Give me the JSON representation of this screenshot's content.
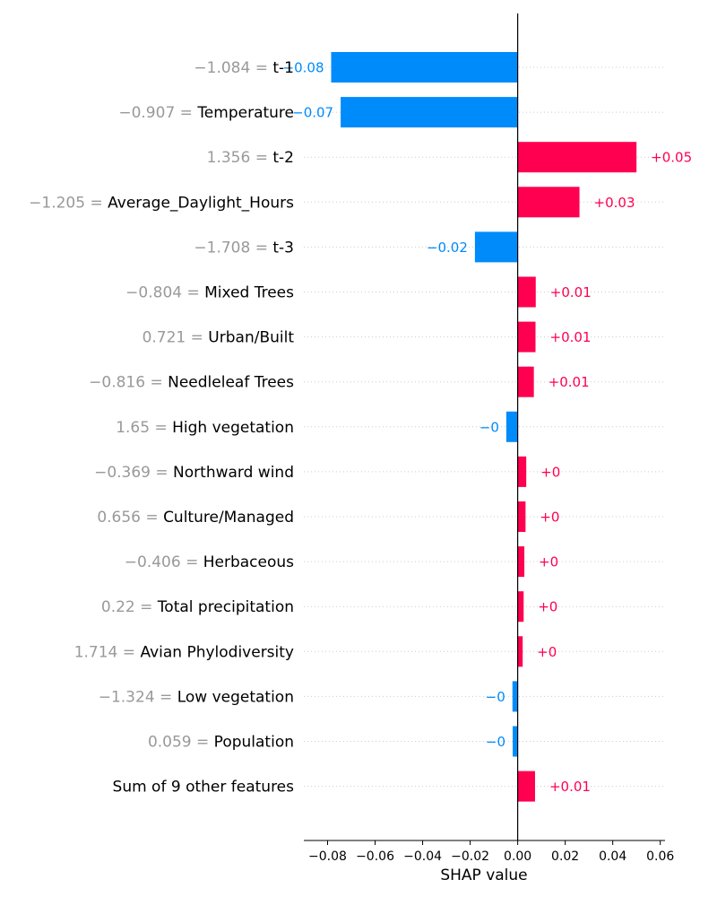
{
  "chart_data": {
    "type": "bar",
    "xlabel": "SHAP value",
    "xlim": [
      -0.09,
      0.062
    ],
    "x_ticks": [
      "−0.08",
      "−0.06",
      "−0.04",
      "−0.02",
      "0.00",
      "0.02",
      "0.04",
      "0.06"
    ],
    "x_tick_values": [
      -0.08,
      -0.06,
      -0.04,
      -0.02,
      0.0,
      0.02,
      0.04,
      0.06
    ],
    "grid": false,
    "colors": {
      "positive": "#ff0051",
      "negative": "#008bfb"
    },
    "features": [
      {
        "value": "−1.084 =",
        "name": "t-1",
        "shap": -0.0785,
        "label": "−0.08"
      },
      {
        "value": "−0.907 =",
        "name": "Temperature",
        "shap": -0.0745,
        "label": "−0.07"
      },
      {
        "value": "1.356 =",
        "name": "t-2",
        "shap": 0.05,
        "label": "+0.05"
      },
      {
        "value": "−1.205 =",
        "name": "Average_Daylight_Hours",
        "shap": 0.026,
        "label": "+0.03"
      },
      {
        "value": "−1.708 =",
        "name": "t-3",
        "shap": -0.018,
        "label": "−0.02"
      },
      {
        "value": "−0.804 =",
        "name": "Mixed Trees",
        "shap": 0.0076,
        "label": "+0.01"
      },
      {
        "value": "0.721 =",
        "name": "Urban/Built",
        "shap": 0.0075,
        "label": "+0.01"
      },
      {
        "value": "−0.816 =",
        "name": "Needleleaf Trees",
        "shap": 0.0068,
        "label": "+0.01"
      },
      {
        "value": "1.65 =",
        "name": "High vegetation",
        "shap": -0.0048,
        "label": "−0"
      },
      {
        "value": "−0.369 =",
        "name": "Northward wind",
        "shap": 0.0036,
        "label": "+0"
      },
      {
        "value": "0.656 =",
        "name": "Culture/Managed",
        "shap": 0.0033,
        "label": "+0"
      },
      {
        "value": "−0.406 =",
        "name": "Herbaceous",
        "shap": 0.0028,
        "label": "+0"
      },
      {
        "value": "0.22 =",
        "name": "Total precipitation",
        "shap": 0.0025,
        "label": "+0"
      },
      {
        "value": "1.714 =",
        "name": "Avian Phylodiversity",
        "shap": 0.0021,
        "label": "+0"
      },
      {
        "value": "−1.324 =",
        "name": "Low vegetation",
        "shap": -0.0022,
        "label": "−0"
      },
      {
        "value": "0.059 =",
        "name": "Population",
        "shap": -0.0021,
        "label": "−0"
      },
      {
        "value": "",
        "name": "Sum of 9 other features",
        "shap": 0.0073,
        "label": "+0.01"
      }
    ]
  }
}
